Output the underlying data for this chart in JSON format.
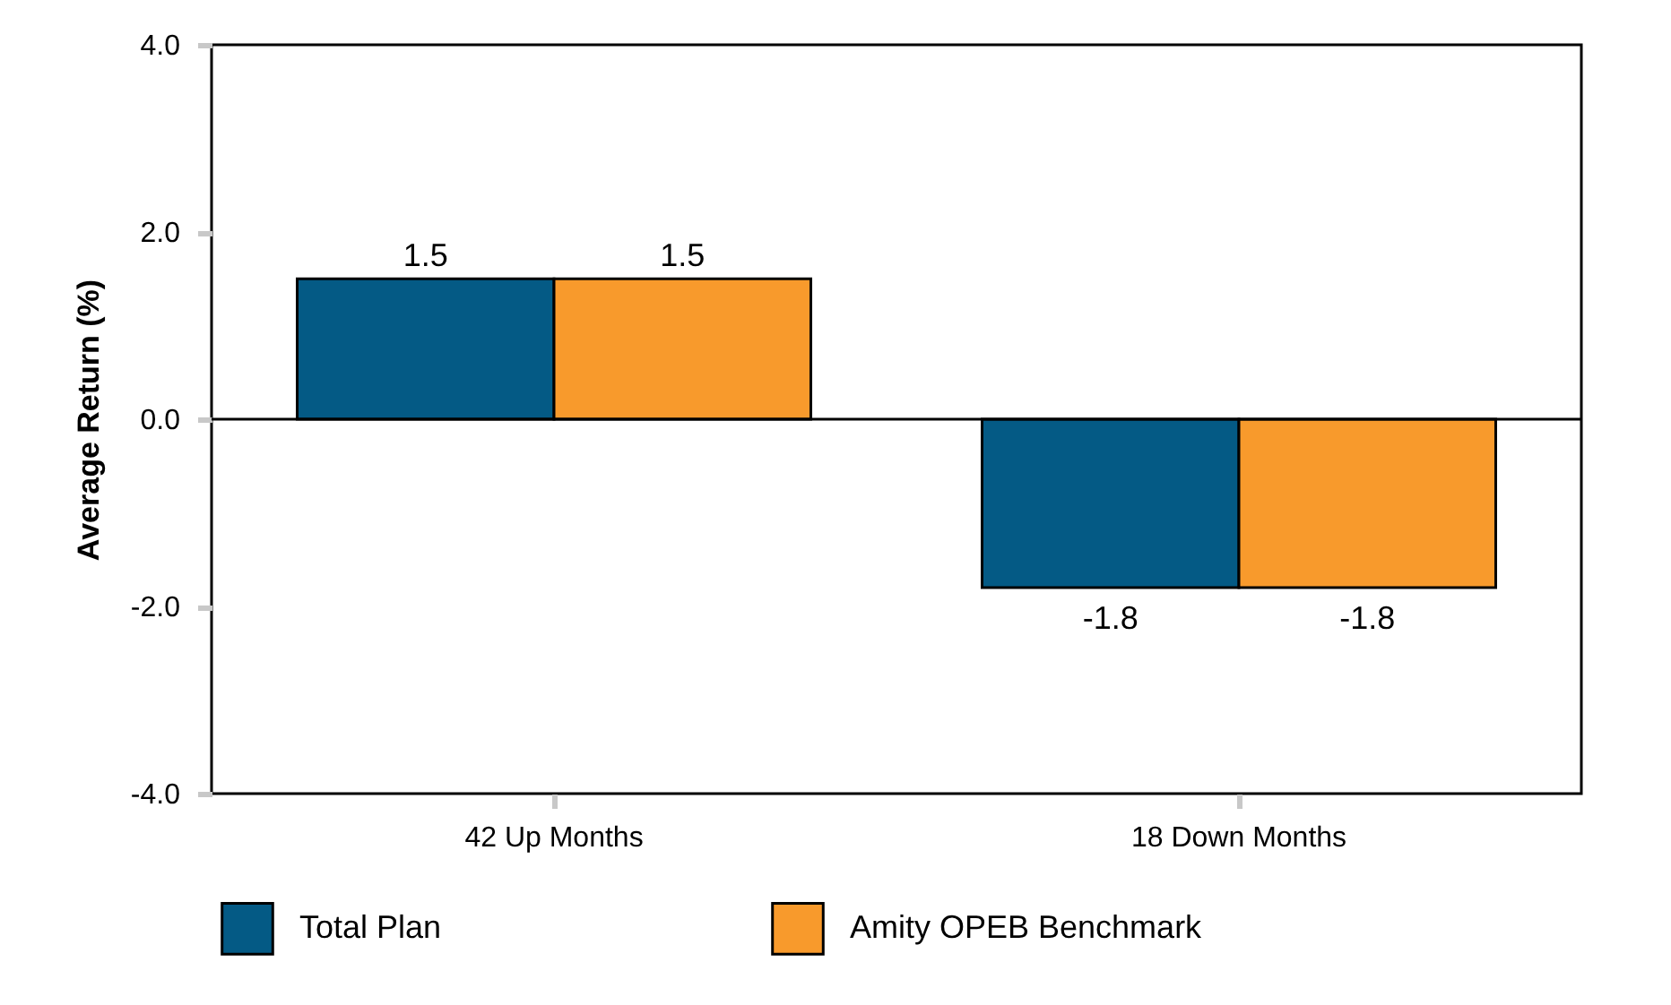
{
  "chart_data": {
    "type": "bar",
    "ylabel": "Average Return (%)",
    "categories": [
      "42 Up Months",
      "18 Down Months"
    ],
    "series": [
      {
        "name": "Total Plan",
        "color": "#045a85",
        "values": [
          1.5,
          -1.8
        ]
      },
      {
        "name": "Amity OPEB Benchmark",
        "color": "#f89a2c",
        "values": [
          1.5,
          -1.8
        ]
      }
    ],
    "ylim": [
      -4,
      4
    ],
    "yticks": [
      {
        "value": -4,
        "label": "-4.0"
      },
      {
        "value": -2,
        "label": "-2.0"
      },
      {
        "value": 0,
        "label": "0.0"
      },
      {
        "value": 2,
        "label": "2.0"
      },
      {
        "value": 4,
        "label": "4.0"
      }
    ],
    "ref_lines": [
      {
        "axis": "y",
        "value": 0,
        "color": "#000000"
      }
    ],
    "data_labels": true,
    "legend": "bottom"
  }
}
